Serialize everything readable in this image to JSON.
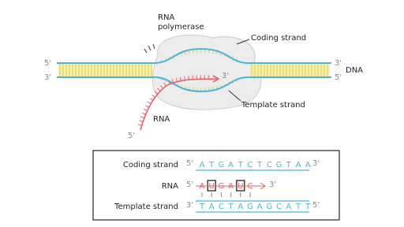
{
  "diagram": {
    "polymerase_label": [
      "RNA",
      "polymerase"
    ],
    "coding_strand_label": "Coding strand",
    "template_strand_label": "Template strand",
    "dna_label": "DNA",
    "rna_label": "RNA",
    "left_ends": [
      "5'",
      "3'"
    ],
    "right_ends": [
      "3'",
      "5'"
    ],
    "rna_3_end": "3'",
    "rna_5_end": "5'"
  },
  "sequence_box": {
    "rows": [
      {
        "label": "Coding strand",
        "start": "5'",
        "sequence": [
          "A",
          "T",
          "G",
          "A",
          "T",
          "C",
          "T",
          "C",
          "G",
          "T",
          "A",
          "A"
        ],
        "end": "3'"
      },
      {
        "label": "RNA",
        "start": "5'",
        "sequence": [
          "A",
          "U",
          "G",
          "A",
          "U",
          "C"
        ],
        "end": "3'"
      },
      {
        "label": "Template strand",
        "start": "3'",
        "sequence": [
          "T",
          "A",
          "C",
          "T",
          "A",
          "G",
          "A",
          "G",
          "C",
          "A",
          "T",
          "T"
        ],
        "end": "5'"
      }
    ]
  }
}
